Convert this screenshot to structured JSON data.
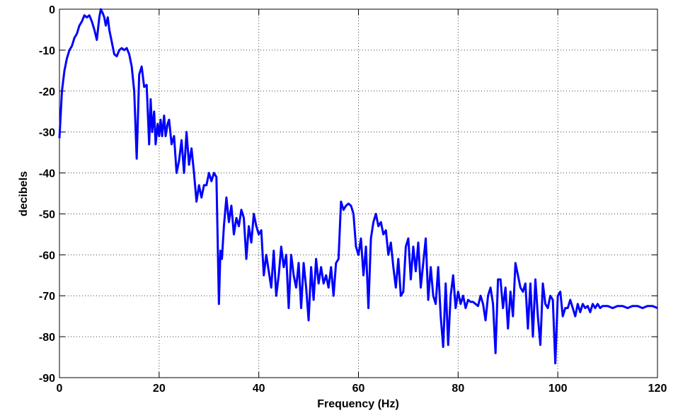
{
  "chart_data": {
    "type": "line",
    "xlabel": "Frequency (Hz)",
    "ylabel": "decibels",
    "color": "#0000ff",
    "grid": true,
    "xlim": [
      0,
      120
    ],
    "xticks": [
      0,
      20,
      40,
      60,
      80,
      100,
      120
    ],
    "ylim": [
      -90,
      0
    ],
    "yticks": [
      -90,
      -80,
      -70,
      -60,
      -50,
      -40,
      -30,
      -20,
      -10,
      0
    ],
    "x": [
      0,
      0.5,
      1,
      1.5,
      2,
      2.5,
      3,
      3.5,
      4,
      4.5,
      5,
      5.5,
      6,
      6.5,
      7,
      7.5,
      8,
      8.3,
      8.7,
      9,
      9.3,
      9.7,
      10,
      10.5,
      11,
      11.5,
      12,
      12.5,
      13,
      13.5,
      14,
      14.5,
      15,
      15.5,
      16,
      16.5,
      17,
      17.5,
      18,
      18.3,
      18.6,
      19,
      19.3,
      19.7,
      20,
      20.3,
      20.6,
      21,
      21.3,
      21.7,
      22,
      22.5,
      23,
      23.5,
      24,
      24.5,
      25,
      25.5,
      26,
      26.5,
      27,
      27.5,
      28,
      28.5,
      29,
      29.5,
      30,
      30.5,
      31,
      31.5,
      32,
      32.3,
      32.6,
      33,
      33.5,
      34,
      34.5,
      35,
      35.5,
      36,
      36.5,
      37,
      37.5,
      38,
      38.5,
      39,
      39.5,
      40,
      40.5,
      41,
      41.5,
      42,
      42.5,
      43,
      43.5,
      44,
      44.5,
      45,
      45.5,
      46,
      46.5,
      47,
      47.5,
      48,
      48.5,
      49,
      49.5,
      50,
      50.5,
      51,
      51.5,
      52,
      52.5,
      53,
      53.5,
      54,
      54.5,
      55,
      55.5,
      56,
      56.5,
      57,
      57.5,
      58,
      58.5,
      59,
      59.5,
      60,
      60.5,
      61,
      61.5,
      62,
      62.5,
      63,
      63.5,
      64,
      64.5,
      65,
      65.5,
      66,
      66.5,
      67,
      67.5,
      68,
      68.5,
      69,
      69.5,
      70,
      70.5,
      71,
      71.5,
      72,
      72.5,
      73,
      73.5,
      74,
      74.5,
      75,
      75.5,
      76,
      76.5,
      77,
      77.5,
      78,
      78.5,
      79,
      79.5,
      80,
      80.5,
      81,
      81.5,
      82,
      82.5,
      83,
      83.5,
      84,
      84.5,
      85,
      85.5,
      86,
      86.5,
      87,
      87.5,
      88,
      88.5,
      89,
      89.5,
      90,
      90.5,
      91,
      91.5,
      92,
      92.5,
      93,
      93.5,
      94,
      94.5,
      95,
      95.5,
      96,
      96.5,
      97,
      97.5,
      98,
      98.5,
      99,
      99.5,
      100,
      100.5,
      101,
      101.5,
      102,
      102.5,
      103,
      103.5,
      104,
      104.5,
      105,
      105.5,
      106,
      106.5,
      107,
      107.5,
      108,
      108.5,
      109,
      109.5,
      110,
      111,
      112,
      113,
      114,
      115,
      116,
      117,
      118,
      119,
      120
    ],
    "values": [
      -31.5,
      -20,
      -15,
      -12,
      -10,
      -9,
      -7,
      -6,
      -4,
      -3,
      -1.5,
      -2,
      -1.5,
      -3,
      -5,
      -7.5,
      -2,
      0,
      -1,
      -2,
      -4,
      -2,
      -5,
      -8,
      -11,
      -11.5,
      -10,
      -9.5,
      -10,
      -9.5,
      -11,
      -14,
      -20,
      -36.5,
      -16,
      -14,
      -19,
      -18.5,
      -33,
      -22,
      -30,
      -25,
      -33,
      -28,
      -31,
      -27,
      -31,
      -26,
      -31,
      -28,
      -27,
      -33,
      -31,
      -40,
      -37,
      -32,
      -40,
      -30,
      -38,
      -34,
      -40,
      -47,
      -43,
      -46,
      -43,
      -43,
      -40,
      -42,
      -40,
      -41,
      -72,
      -59,
      -61,
      -53,
      -46,
      -52,
      -48,
      -55,
      -51,
      -53,
      -49,
      -51,
      -61,
      -53,
      -57,
      -50,
      -53,
      -55,
      -54,
      -65,
      -60,
      -64,
      -68,
      -59,
      -70,
      -65,
      -58,
      -63,
      -60,
      -73,
      -60,
      -65,
      -68,
      -62,
      -73,
      -62,
      -68,
      -76,
      -63,
      -71,
      -61,
      -67,
      -63,
      -67,
      -65,
      -68,
      -63,
      -70,
      -62,
      -61,
      -47,
      -49,
      -48,
      -47.5,
      -48,
      -50,
      -58,
      -60,
      -56,
      -65,
      -58,
      -73,
      -56,
      -52,
      -50,
      -53,
      -52,
      -55,
      -54,
      -60,
      -57,
      -63,
      -68,
      -61,
      -70,
      -69,
      -58,
      -56,
      -66,
      -58,
      -64,
      -57,
      -68,
      -62,
      -56,
      -71,
      -63,
      -70,
      -72,
      -63,
      -75,
      -82.5,
      -67,
      -82,
      -70,
      -65,
      -73,
      -69,
      -72,
      -70,
      -73,
      -71,
      -71.5,
      -71.5,
      -72,
      -72.5,
      -70,
      -72,
      -76,
      -70,
      -68,
      -72,
      -84,
      -66,
      -66,
      -73,
      -68,
      -78,
      -69,
      -75,
      -62,
      -65,
      -68,
      -69,
      -67,
      -78,
      -67,
      -80,
      -66,
      -75,
      -82,
      -67,
      -72,
      -73,
      -70,
      -71,
      -86.5,
      -70,
      -69,
      -75,
      -73,
      -73,
      -71,
      -73,
      -75,
      -72,
      -74,
      -72,
      -73,
      -72.5,
      -74,
      -72,
      -73,
      -72,
      -73,
      -72.5,
      -72.5,
      -72.5,
      -73,
      -72.5,
      -72.5,
      -73,
      -72.5,
      -72.5,
      -73,
      -72.5,
      -72.5,
      -73
    ]
  }
}
